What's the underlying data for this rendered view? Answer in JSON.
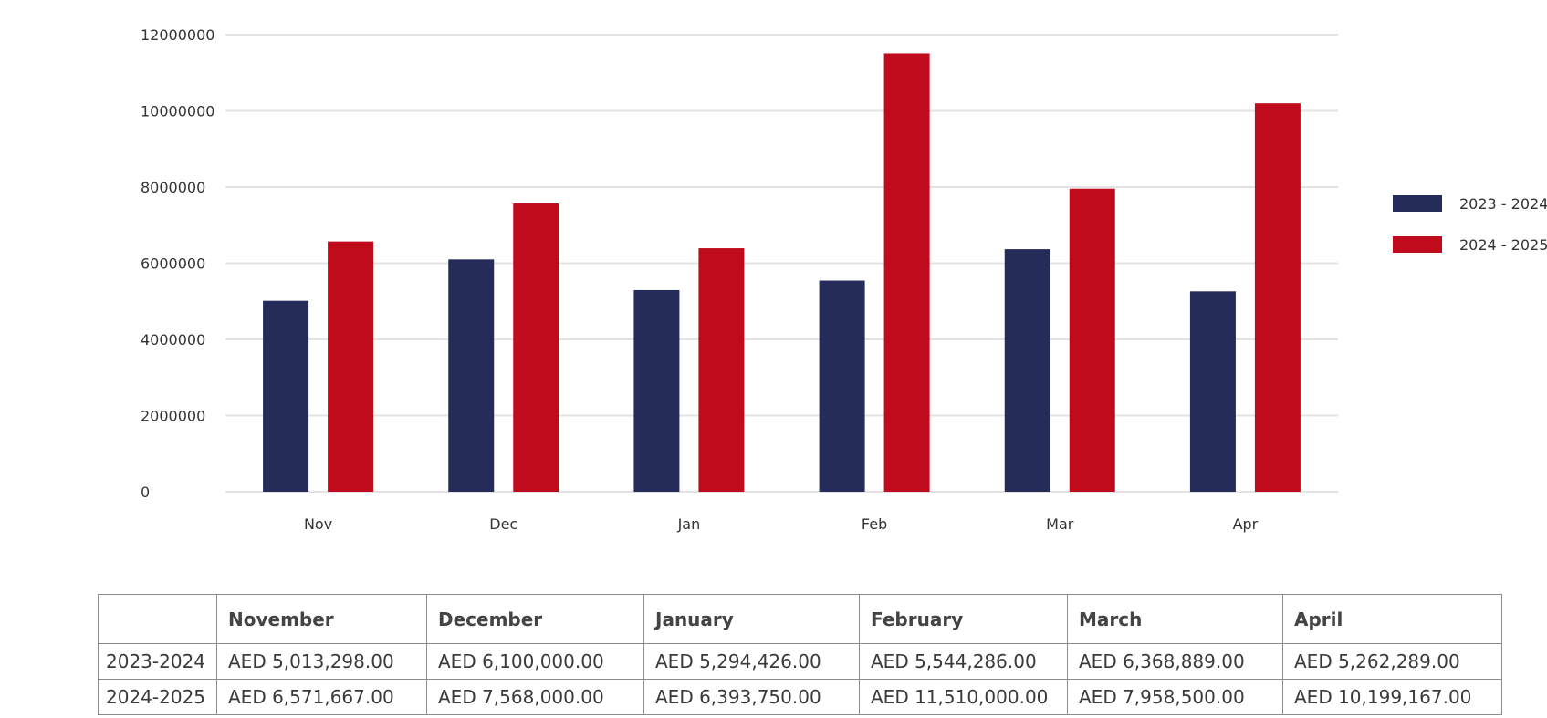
{
  "chart_data": {
    "type": "bar",
    "categories": [
      "Nov",
      "Dec",
      "Jan",
      "Feb",
      "Mar",
      "Apr"
    ],
    "series": [
      {
        "name": "2023 - 2024",
        "color": "#252c5a",
        "values": [
          5013298,
          6100000,
          5294426,
          5544286,
          6368889,
          5262289
        ]
      },
      {
        "name": "2024 - 2025",
        "color": "#c00b1d",
        "values": [
          6571667,
          7568000,
          6393750,
          11510000,
          7958500,
          10199167
        ]
      }
    ],
    "y_ticks": [
      "0",
      "2000000",
      "4000000",
      "6000000",
      "8000000",
      "10000000",
      "12000000"
    ],
    "ylim": [
      0,
      12000000
    ],
    "grid": true,
    "legend_position": "right"
  },
  "table": {
    "corner": "",
    "headers": [
      "November",
      "December",
      "January",
      "February",
      "March",
      "April"
    ],
    "rows": [
      {
        "label": "2023-2024",
        "cells": [
          "AED 5,013,298.00",
          "AED 6,100,000.00",
          "AED 5,294,426.00",
          "AED 5,544,286.00",
          "AED 6,368,889.00",
          "AED 5,262,289.00"
        ]
      },
      {
        "label": "2024-2025",
        "cells": [
          "AED 6,571,667.00",
          "AED 7,568,000.00",
          "AED 6,393,750.00",
          "AED 11,510,000.00",
          "AED 7,958,500.00",
          "AED 10,199,167.00"
        ]
      }
    ]
  }
}
